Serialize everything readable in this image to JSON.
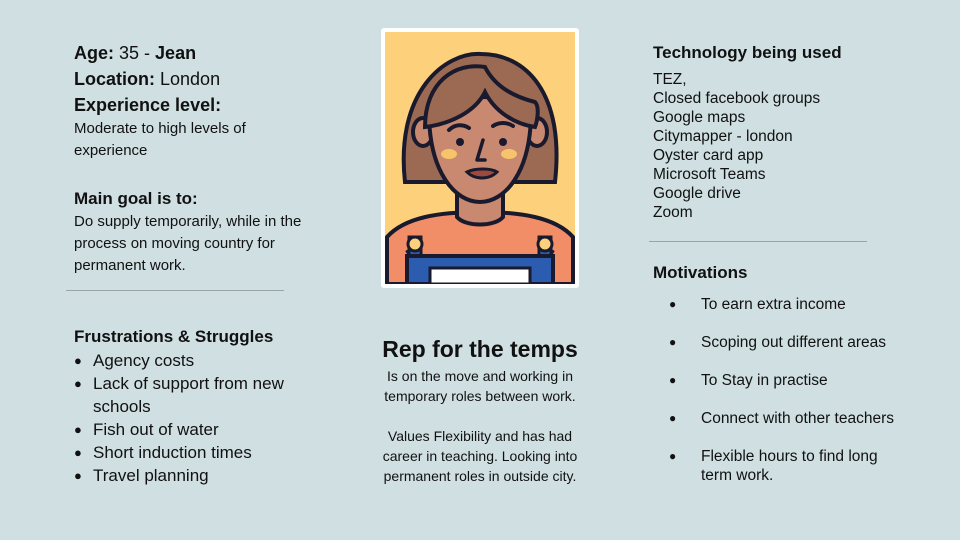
{
  "profile": {
    "age_label": "Age:",
    "age_value": "35",
    "name_sep": " - ",
    "name": "Jean",
    "location_label": "Location:",
    "location_value": "London",
    "experience_label": "Experience level:",
    "experience_value": "Moderate to high levels of experience",
    "goal_label": "Main goal is to:",
    "goal_value": "Do supply temporarily, while in the process on moving country for permanent work."
  },
  "frustrations": {
    "title": "Frustrations & Struggles",
    "items": [
      "Agency costs",
      "Lack of support from new schools",
      "Fish out of water",
      "Short induction times",
      "Travel planning"
    ]
  },
  "persona": {
    "title": "Rep for the temps",
    "desc1": "Is on the move and working in temporary roles between work.",
    "desc2": "Values Flexibility and has had career in teaching.  Looking into permanent roles in outside city."
  },
  "technology": {
    "title": "Technology being used",
    "items": [
      "TEZ,",
      "Closed facebook groups",
      "Google maps",
      "Citymapper - london",
      "Oyster card app",
      "Microsoft Teams",
      "Google drive",
      "Zoom"
    ]
  },
  "motivations": {
    "title": "Motivations",
    "items": [
      "To earn extra income",
      "Scoping out different areas",
      "To Stay in practise",
      "Connect with other teachers",
      "Flexible hours to find long term work."
    ]
  },
  "colors": {
    "background": "#cfdfe2",
    "avatar_bg": "#fdd17c",
    "hair": "#9c6a53",
    "skin": "#c98870",
    "shirt": "#f28e67",
    "overalls": "#2c5cb0"
  }
}
